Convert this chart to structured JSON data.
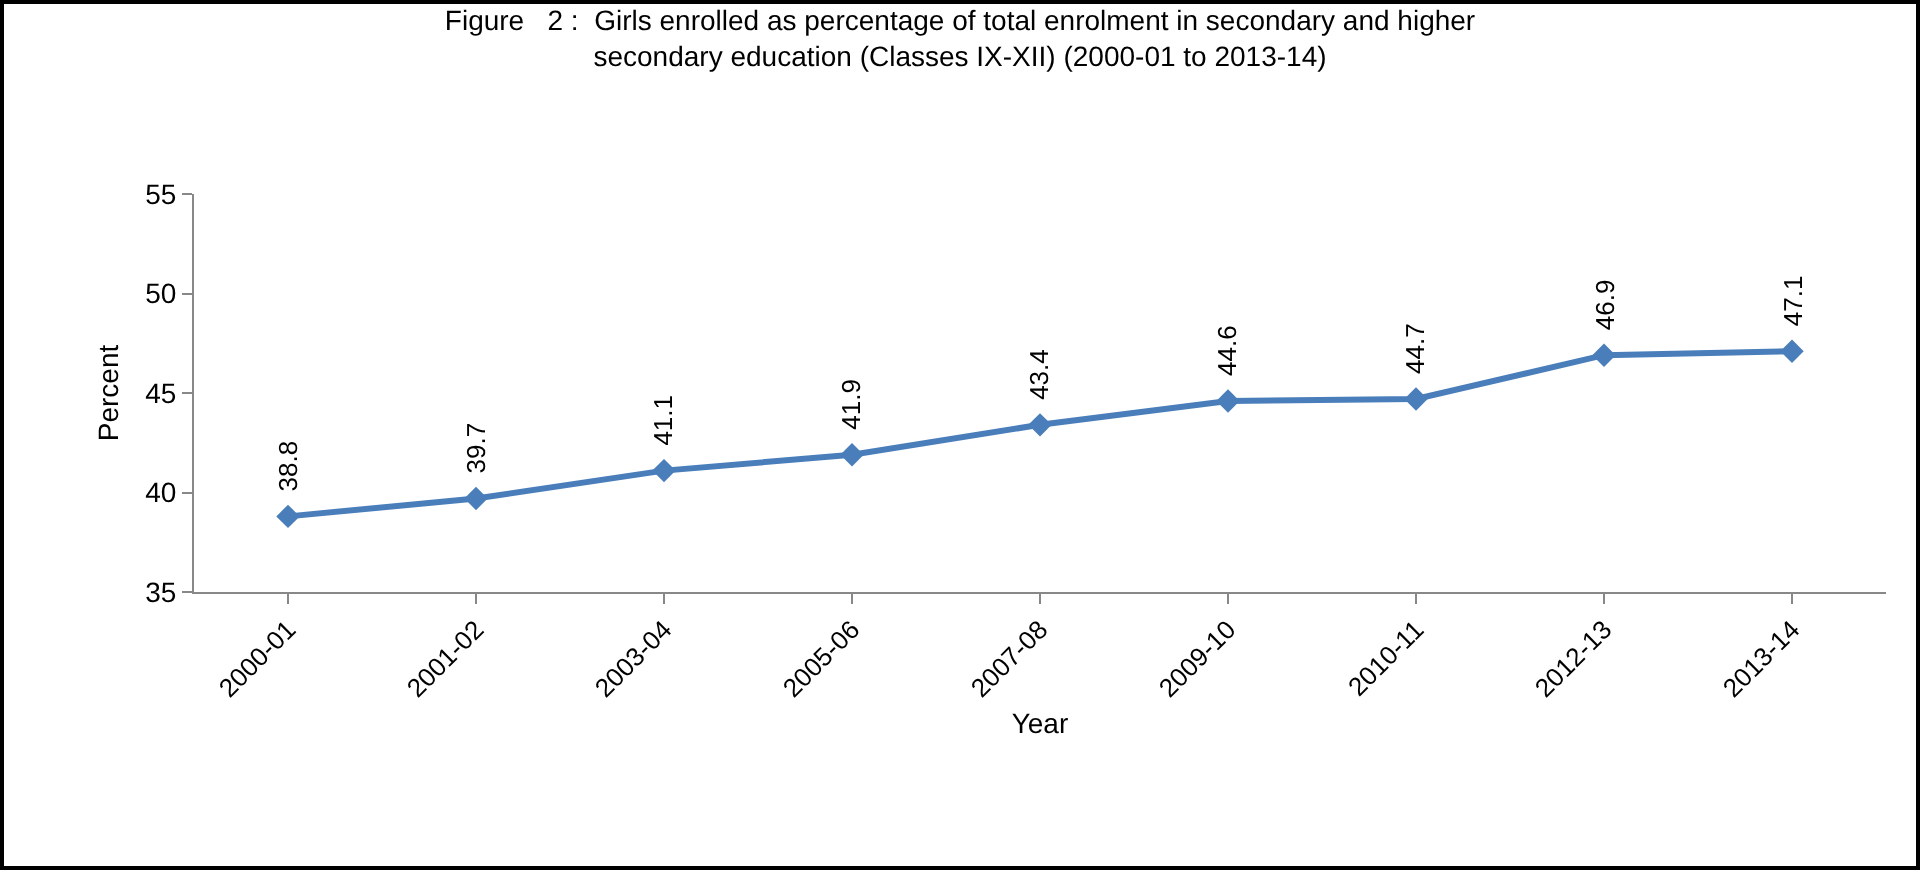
{
  "chart_data": {
    "type": "line",
    "title": "Figure   2 :  Girls enrolled as percentage of total enrolment in secondary and higher\nsecondary education (Classes IX-XII) (2000-01 to 2013-14)",
    "xlabel": "Year",
    "ylabel": "Percent",
    "categories": [
      "2000-01",
      "2001-02",
      "2003-04",
      "2005-06",
      "2007-08",
      "2009-10",
      "2010-11",
      "2012-13",
      "2013-14"
    ],
    "series": [
      {
        "color": "#4a7ebb",
        "values": [
          38.8,
          39.7,
          41.1,
          41.9,
          43.4,
          44.6,
          44.7,
          46.9,
          47.1
        ]
      }
    ],
    "ylim": [
      35,
      55
    ],
    "yticks": [
      35,
      40,
      45,
      50,
      55
    ],
    "grid": false,
    "marker": "diamond",
    "line_style": "solid",
    "data_labels": true
  }
}
